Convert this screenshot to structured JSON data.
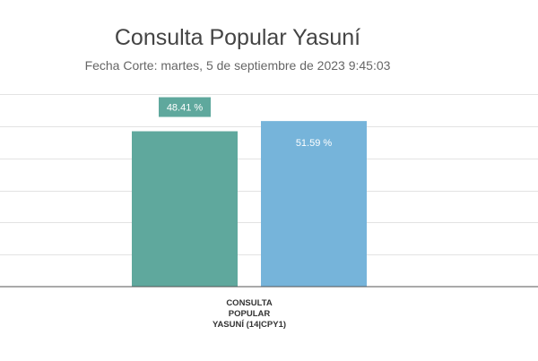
{
  "chart_data": {
    "type": "bar",
    "title": "Consulta Popular Yasuní",
    "subtitle": "Fecha Corte: martes, 5 de septiembre de 2023 9:45:03",
    "categories": [
      "CONSULTA POPULAR YASUNÍ (14|CPY1)"
    ],
    "category_lines": [
      "CONSULTA",
      "POPULAR",
      "YASUNÍ (14|CPY1)"
    ],
    "series": [
      {
        "values": [
          48.41
        ],
        "color": "#5fa89d"
      },
      {
        "values": [
          51.59
        ],
        "color": "#76b4da"
      }
    ],
    "data_labels": [
      "48.41 %",
      "51.59 %"
    ],
    "ylim": [
      0,
      60
    ],
    "grid": true,
    "legend": "none"
  }
}
